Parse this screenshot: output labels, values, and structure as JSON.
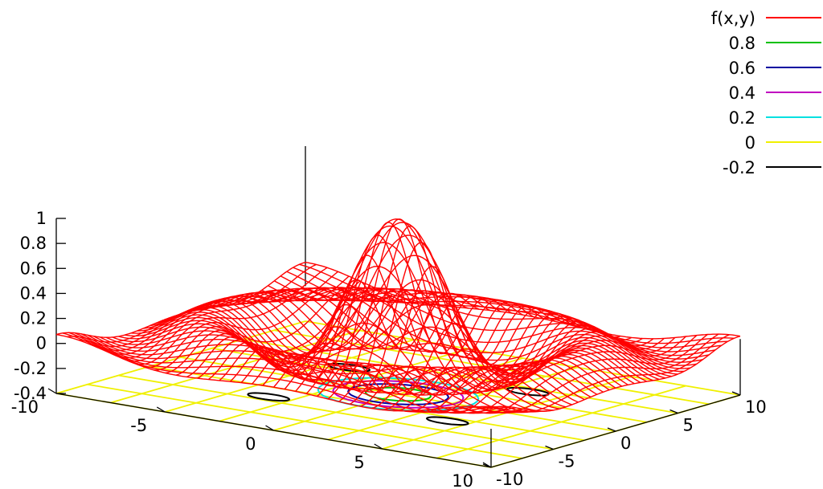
{
  "chart_data": {
    "type": "surface",
    "function_label": "f(x,y)",
    "x_range": [
      -10,
      10
    ],
    "y_range": [
      -10,
      10
    ],
    "z_range": [
      -0.4,
      1
    ],
    "x_ticks": [
      "-10",
      "-5",
      "0",
      "5",
      "10"
    ],
    "y_ticks": [
      "10",
      "5",
      "0",
      "-5",
      "-10"
    ],
    "z_ticks": [
      "1",
      "0.8",
      "0.6",
      "0.4",
      "0.2",
      "0",
      "-0.2",
      "-0.4"
    ],
    "legend_placement": "top-right",
    "series": [
      {
        "name": "f(x,y)",
        "color": "#ff0000"
      },
      {
        "name": "0.8",
        "color": "#00c000"
      },
      {
        "name": "0.6",
        "color": "#0000a0"
      },
      {
        "name": "0.4",
        "color": "#c000c0"
      },
      {
        "name": "0.2",
        "color": "#00e0e0"
      },
      {
        "name": "0",
        "color": "#f0f000"
      },
      {
        "name": "-0.2",
        "color": "#000000"
      }
    ]
  }
}
